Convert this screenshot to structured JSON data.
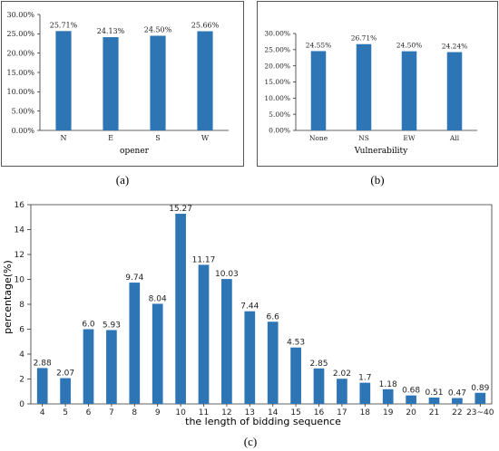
{
  "colors": {
    "bar": "#2e75b6",
    "axis": "#333333",
    "frame": "#555555"
  },
  "chart_data": [
    {
      "type": "bar",
      "caption": "(a)",
      "xlabel": "opener",
      "ylabel": "",
      "categories": [
        "N",
        "E",
        "S",
        "W"
      ],
      "values": [
        25.71,
        24.13,
        24.5,
        25.66
      ],
      "value_labels": [
        "25.71%",
        "24.13%",
        "24.50%",
        "25.66%"
      ],
      "ylim": [
        0,
        30
      ],
      "yticks": [
        0,
        5,
        10,
        15,
        20,
        25,
        30
      ],
      "ytick_labels": [
        "0.00%",
        "5.00%",
        "10.00%",
        "15.00%",
        "20.00%",
        "25.00%",
        "30.00%"
      ],
      "grid": false
    },
    {
      "type": "bar",
      "caption": "(b)",
      "xlabel": "Vulnerability",
      "ylabel": "",
      "categories": [
        "None",
        "NS",
        "EW",
        "All"
      ],
      "values": [
        24.55,
        26.71,
        24.5,
        24.24
      ],
      "value_labels": [
        "24.55%",
        "26.71%",
        "24.50%",
        "24.24%"
      ],
      "ylim": [
        0,
        30
      ],
      "yticks": [
        0,
        5,
        10,
        15,
        20,
        25,
        30
      ],
      "ytick_labels": [
        "0.00%",
        "5.00%",
        "10.00%",
        "15.00%",
        "20.00%",
        "25.00%",
        "30.00%"
      ],
      "grid": false
    },
    {
      "type": "bar",
      "caption": "(c)",
      "xlabel": "the length of bidding sequence",
      "ylabel": "percentage(%)",
      "categories": [
        "4",
        "5",
        "6",
        "7",
        "8",
        "9",
        "10",
        "11",
        "12",
        "13",
        "14",
        "15",
        "16",
        "17",
        "18",
        "19",
        "20",
        "21",
        "22",
        "23~40"
      ],
      "values": [
        2.88,
        2.07,
        6.0,
        5.93,
        9.74,
        8.04,
        15.27,
        11.17,
        10.03,
        7.44,
        6.6,
        4.53,
        2.85,
        2.02,
        1.7,
        1.18,
        0.68,
        0.51,
        0.47,
        0.89
      ],
      "value_labels": [
        "2.88",
        "2.07",
        "6.0",
        "5.93",
        "9.74",
        "8.04",
        "15.27",
        "11.17",
        "10.03",
        "7.44",
        "6.6",
        "4.53",
        "2.85",
        "2.02",
        "1.7",
        "1.18",
        "0.68",
        "0.51",
        "0.47",
        "0.89"
      ],
      "ylim": [
        0,
        16
      ],
      "yticks": [
        0,
        2,
        4,
        6,
        8,
        10,
        12,
        14,
        16
      ],
      "ytick_labels": [
        "0",
        "2",
        "4",
        "6",
        "8",
        "10",
        "12",
        "14",
        "16"
      ],
      "grid": false
    }
  ]
}
